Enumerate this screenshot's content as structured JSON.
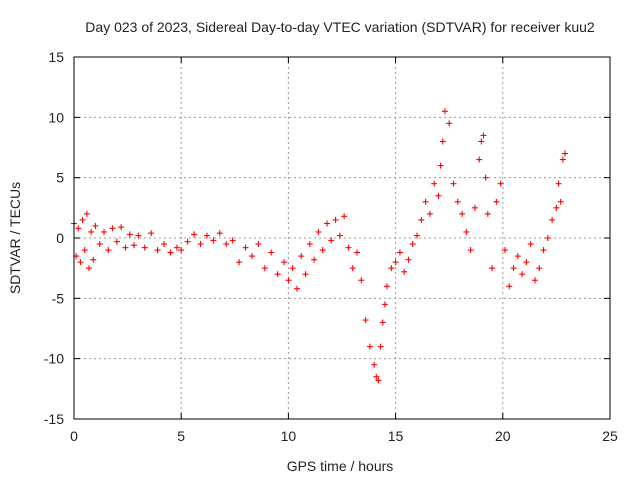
{
  "chart_data": {
    "type": "scatter",
    "title": "Day 023 of 2023, Sidereal Day-to-day VTEC variation (SDTVAR) for receiver kuu2",
    "xlabel": "GPS time / hours",
    "ylabel": "SDTVAR / TECUs",
    "xlim": [
      0,
      25
    ],
    "ylim": [
      -15,
      15
    ],
    "xticks": [
      0,
      5,
      10,
      15,
      20,
      25
    ],
    "yticks": [
      -15,
      -10,
      -5,
      0,
      5,
      10,
      15
    ],
    "grid": true,
    "marker": "plus",
    "color": "#ff0000",
    "series": [
      {
        "name": "SDTVAR kuu2",
        "x": [
          0.0,
          0.1,
          0.2,
          0.3,
          0.4,
          0.5,
          0.6,
          0.7,
          0.8,
          0.9,
          1.0,
          1.2,
          1.4,
          1.6,
          1.8,
          2.0,
          2.2,
          2.4,
          2.6,
          2.8,
          3.0,
          3.3,
          3.6,
          3.9,
          4.2,
          4.5,
          4.8,
          5.0,
          5.3,
          5.6,
          5.9,
          6.2,
          6.5,
          6.8,
          7.1,
          7.4,
          7.7,
          8.0,
          8.3,
          8.6,
          8.9,
          9.2,
          9.5,
          9.8,
          10.0,
          10.2,
          10.4,
          10.6,
          10.8,
          11.0,
          11.2,
          11.4,
          11.6,
          11.8,
          12.0,
          12.2,
          12.4,
          12.6,
          12.8,
          13.0,
          13.2,
          13.4,
          13.6,
          13.8,
          14.0,
          14.1,
          14.2,
          14.3,
          14.4,
          14.5,
          14.6,
          14.8,
          15.0,
          15.2,
          15.4,
          15.6,
          15.8,
          16.0,
          16.2,
          16.4,
          16.6,
          16.8,
          17.0,
          17.1,
          17.2,
          17.3,
          17.5,
          17.7,
          17.9,
          18.1,
          18.3,
          18.5,
          18.7,
          18.9,
          19.0,
          19.1,
          19.2,
          19.3,
          19.5,
          19.7,
          19.9,
          20.1,
          20.3,
          20.5,
          20.7,
          20.9,
          21.1,
          21.3,
          21.5,
          21.7,
          21.9,
          22.1,
          22.3,
          22.5,
          22.6,
          22.7,
          22.8,
          22.9
        ],
        "y": [
          1.2,
          -1.5,
          0.8,
          -2.0,
          1.5,
          -1.0,
          2.0,
          -2.5,
          0.5,
          -1.8,
          1.0,
          -0.5,
          0.5,
          -1.0,
          0.8,
          -0.3,
          0.9,
          -0.8,
          0.3,
          -0.6,
          0.2,
          -0.8,
          0.4,
          -1.0,
          -0.5,
          -1.2,
          -0.8,
          -1.0,
          -0.3,
          0.3,
          -0.5,
          0.2,
          -0.2,
          0.4,
          -0.5,
          -0.2,
          -2.0,
          -0.8,
          -1.5,
          -0.5,
          -2.5,
          -1.2,
          -3.0,
          -2.0,
          -3.5,
          -2.5,
          -4.2,
          -1.5,
          -3.0,
          -0.5,
          -1.8,
          0.5,
          -1.0,
          1.2,
          -0.2,
          1.5,
          0.2,
          1.8,
          -0.8,
          -2.5,
          -1.2,
          -3.5,
          -6.8,
          -9.0,
          -10.5,
          -11.5,
          -11.8,
          -9.0,
          -7.0,
          -5.5,
          -4.0,
          -2.5,
          -2.0,
          -1.2,
          -2.8,
          -1.8,
          -0.5,
          0.2,
          1.5,
          3.0,
          2.0,
          4.5,
          3.5,
          6.0,
          8.0,
          10.5,
          9.5,
          4.5,
          3.0,
          2.0,
          0.5,
          -1.0,
          2.5,
          6.5,
          8.0,
          8.5,
          5.0,
          2.0,
          -2.5,
          3.0,
          4.5,
          -1.0,
          -4.0,
          -2.5,
          -1.5,
          -3.0,
          -2.0,
          -0.5,
          -3.5,
          -2.5,
          -1.0,
          0.0,
          1.5,
          2.5,
          4.5,
          3.0,
          6.5,
          7.0
        ]
      }
    ]
  }
}
